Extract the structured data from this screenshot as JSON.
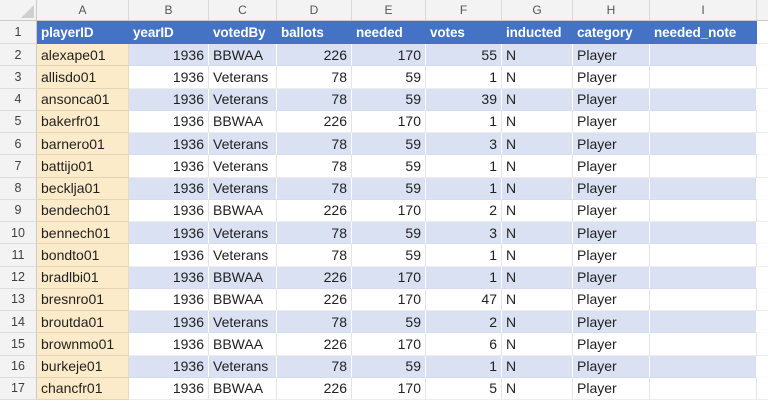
{
  "sheet": {
    "column_letters": [
      "A",
      "B",
      "C",
      "D",
      "E",
      "F",
      "G",
      "H",
      "I"
    ],
    "row_numbers": [
      "1",
      "2",
      "3",
      "4",
      "5",
      "6",
      "7",
      "8",
      "9",
      "10",
      "11",
      "12",
      "13",
      "14",
      "15",
      "16",
      "17"
    ]
  },
  "table": {
    "headers": [
      "playerID",
      "yearID",
      "votedBy",
      "ballots",
      "needed",
      "votes",
      "inducted",
      "category",
      "needed_note"
    ],
    "rows": [
      [
        "alexape01",
        "1936",
        "BBWAA",
        "226",
        "170",
        "55",
        "N",
        "Player",
        ""
      ],
      [
        "allisdo01",
        "1936",
        "Veterans",
        "78",
        "59",
        "1",
        "N",
        "Player",
        ""
      ],
      [
        "ansonca01",
        "1936",
        "Veterans",
        "78",
        "59",
        "39",
        "N",
        "Player",
        ""
      ],
      [
        "bakerfr01",
        "1936",
        "BBWAA",
        "226",
        "170",
        "1",
        "N",
        "Player",
        ""
      ],
      [
        "barnero01",
        "1936",
        "Veterans",
        "78",
        "59",
        "3",
        "N",
        "Player",
        ""
      ],
      [
        "battijo01",
        "1936",
        "Veterans",
        "78",
        "59",
        "1",
        "N",
        "Player",
        ""
      ],
      [
        "becklja01",
        "1936",
        "Veterans",
        "78",
        "59",
        "1",
        "N",
        "Player",
        ""
      ],
      [
        "bendech01",
        "1936",
        "BBWAA",
        "226",
        "170",
        "2",
        "N",
        "Player",
        ""
      ],
      [
        "bennech01",
        "1936",
        "Veterans",
        "78",
        "59",
        "3",
        "N",
        "Player",
        ""
      ],
      [
        "bondto01",
        "1936",
        "Veterans",
        "78",
        "59",
        "1",
        "N",
        "Player",
        ""
      ],
      [
        "bradlbi01",
        "1936",
        "BBWAA",
        "226",
        "170",
        "1",
        "N",
        "Player",
        ""
      ],
      [
        "bresnro01",
        "1936",
        "BBWAA",
        "226",
        "170",
        "47",
        "N",
        "Player",
        ""
      ],
      [
        "broutda01",
        "1936",
        "Veterans",
        "78",
        "59",
        "2",
        "N",
        "Player",
        ""
      ],
      [
        "brownmo01",
        "1936",
        "BBWAA",
        "226",
        "170",
        "6",
        "N",
        "Player",
        ""
      ],
      [
        "burkeje01",
        "1936",
        "Veterans",
        "78",
        "59",
        "1",
        "N",
        "Player",
        ""
      ],
      [
        "chancfr01",
        "1936",
        "BBWAA",
        "226",
        "170",
        "5",
        "N",
        "Player",
        ""
      ]
    ]
  },
  "colors": {
    "header_bg": "#4472C4",
    "header_text": "#FFFFFF",
    "band_row_bg": "#D9E1F2",
    "player_id_col_bg": "#FCEBC9",
    "chrome_bg": "#F3F3F3",
    "gridline": "#E2E2E2"
  }
}
